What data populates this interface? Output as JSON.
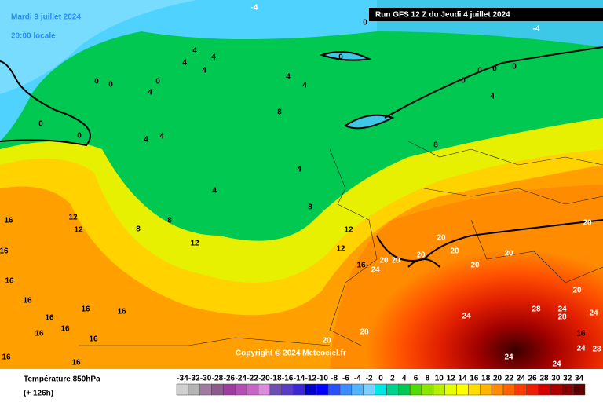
{
  "header": {
    "valid_date": "Mardi 9 juillet 2024",
    "local_time": "20:00 locale",
    "run": "Run GFS 12 Z du Jeudi 4 juillet 2024"
  },
  "copyright": "Copyright © 2024 Meteociel.fr",
  "legend": {
    "title": "Température 850hPa",
    "lead": "(+ 126h)",
    "scale": [
      -34,
      -32,
      -30,
      -28,
      -26,
      -24,
      -22,
      -20,
      -18,
      -16,
      -14,
      -12,
      -10,
      -8,
      -6,
      -4,
      -2,
      0,
      2,
      4,
      6,
      8,
      10,
      12,
      14,
      16,
      18,
      20,
      22,
      24,
      26,
      28,
      30,
      32,
      34
    ],
    "colors": [
      "#d0d0d0",
      "#b4b4b4",
      "#a07ca0",
      "#8c5a8c",
      "#a03ca0",
      "#b450b4",
      "#c864c8",
      "#dc8cdc",
      "#6e50b4",
      "#5a3cc8",
      "#3c28d2",
      "#0000c8",
      "#0000ff",
      "#2850ff",
      "#3c8cff",
      "#50b4ff",
      "#78d2ff",
      "#00e6e6",
      "#00d28c",
      "#00c850",
      "#50dc00",
      "#8ce600",
      "#b4f000",
      "#e6ff00",
      "#ffff00",
      "#ffdc00",
      "#ffb400",
      "#ff8c00",
      "#ff6400",
      "#ff3c00",
      "#f01e00",
      "#d20000",
      "#aa0000",
      "#820000",
      "#5a0000"
    ]
  },
  "contour_labels": [
    -4,
    -4,
    0,
    0,
    4,
    4,
    4,
    4,
    0,
    0,
    0,
    4,
    4,
    4,
    8,
    0,
    0,
    4,
    4,
    4,
    4,
    8,
    4,
    0,
    0,
    0,
    0,
    12,
    12,
    8,
    8,
    12,
    8,
    12,
    12,
    16,
    24,
    20,
    20,
    20,
    20,
    20,
    20,
    20,
    20,
    16,
    16,
    16,
    16,
    16,
    16,
    16,
    16,
    16,
    16,
    16,
    16,
    24,
    28,
    24,
    28,
    24,
    28,
    20,
    20,
    24,
    24,
    24,
    28,
    16
  ]
}
